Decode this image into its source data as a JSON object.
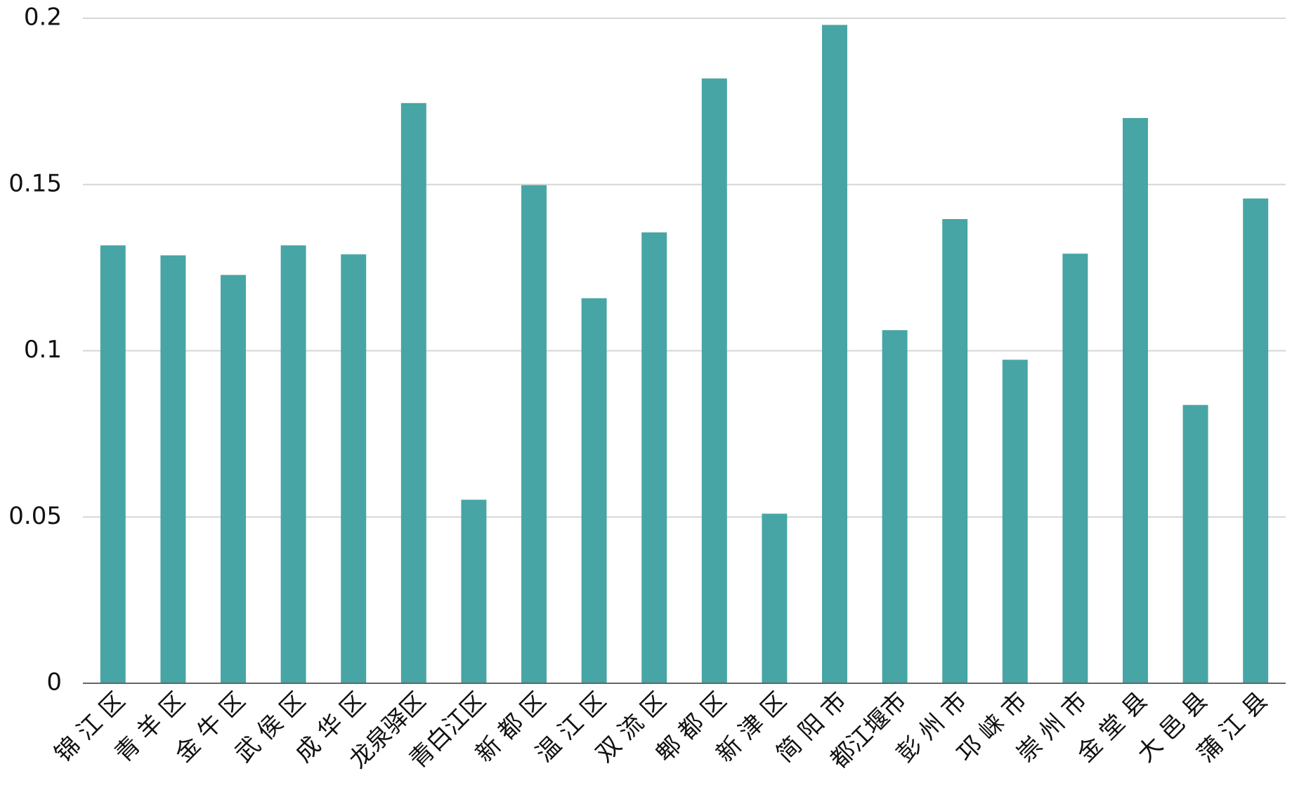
{
  "chart_data": {
    "type": "bar",
    "categories": [
      "锦 江 区",
      "青 羊 区",
      "金 牛 区",
      "武 侯 区",
      "成 华 区",
      "龙泉驿区",
      "青白江区",
      "新 都 区",
      "温 江 区",
      "双 流 区",
      "郫 都 区",
      "新 津 区",
      "简 阳 市",
      "都江堰市",
      "彭 州 市",
      "邛 崃 市",
      "崇 州 市",
      "金 堂 县",
      "大 邑 县",
      "蒲 江 县"
    ],
    "values": [
      0.1317,
      0.1287,
      0.1228,
      0.1317,
      0.129,
      0.1745,
      0.0552,
      0.1498,
      0.1158,
      0.1356,
      0.1819,
      0.051,
      0.198,
      0.1062,
      0.1396,
      0.0973,
      0.1292,
      0.17,
      0.0837,
      0.1458
    ],
    "color": "#47a5a5",
    "ylim": [
      0,
      0.2
    ],
    "yticks": [
      0,
      0.05,
      0.1,
      0.15,
      0.2
    ],
    "grid": true
  }
}
